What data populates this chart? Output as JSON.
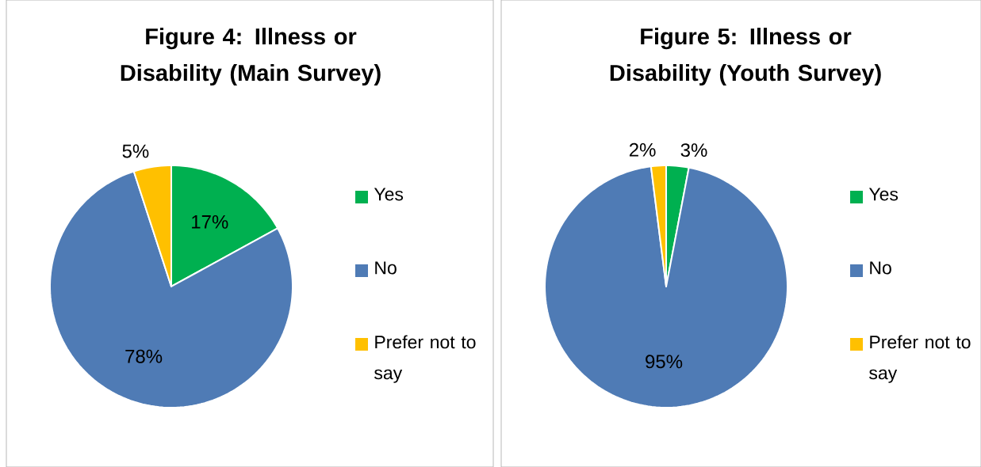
{
  "chart_data": [
    {
      "type": "pie",
      "title": "Figure 4: Illness or Disability (Main Survey)",
      "categories": [
        "Yes",
        "No",
        "Prefer not to say"
      ],
      "values": [
        17,
        78,
        5
      ],
      "colors": [
        "#00b050",
        "#4f7bb5",
        "#ffc000"
      ],
      "value_labels": [
        "17%",
        "78%",
        "5%"
      ],
      "legend": "right"
    },
    {
      "type": "pie",
      "title": "Figure 5: Illness or Disability (Youth Survey)",
      "categories": [
        "Yes",
        "No",
        "Prefer not to say"
      ],
      "values": [
        3,
        95,
        2
      ],
      "colors": [
        "#00b050",
        "#4f7bb5",
        "#ffc000"
      ],
      "value_labels": [
        "3%",
        "95%",
        "2%"
      ],
      "legend": "right"
    }
  ]
}
